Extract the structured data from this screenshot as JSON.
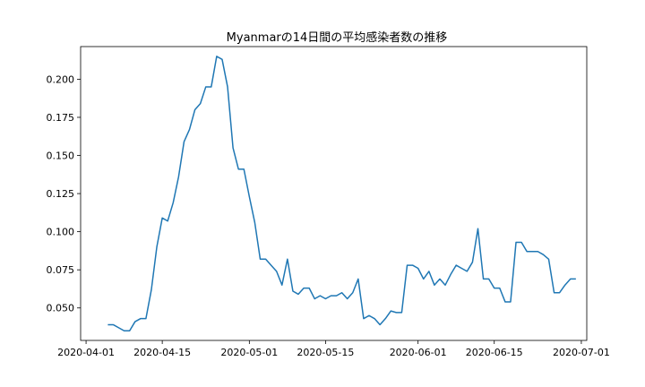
{
  "chart_data": {
    "type": "line",
    "title": "Myanmarの14日間の平均感染者数の推移",
    "xlabel": "",
    "ylabel": "",
    "x_ticks": [
      "2020-04-01",
      "2020-04-15",
      "2020-05-01",
      "2020-05-15",
      "2020-06-01",
      "2020-06-15",
      "2020-07-01"
    ],
    "y_ticks": [
      "0.050",
      "0.075",
      "0.100",
      "0.125",
      "0.150",
      "0.175",
      "0.200"
    ],
    "xlim": [
      "2020-03-31",
      "2020-07-02"
    ],
    "ylim": [
      0.0287,
      0.2214
    ],
    "grid": false,
    "line_color": "#1f77b4",
    "series": [
      {
        "x": [
          "2020-04-05",
          "2020-04-06",
          "2020-04-07",
          "2020-04-08",
          "2020-04-09",
          "2020-04-10",
          "2020-04-11",
          "2020-04-12",
          "2020-04-13",
          "2020-04-14",
          "2020-04-15",
          "2020-04-16",
          "2020-04-17",
          "2020-04-18",
          "2020-04-19",
          "2020-04-20",
          "2020-04-21",
          "2020-04-22",
          "2020-04-23",
          "2020-04-24",
          "2020-04-25",
          "2020-04-26",
          "2020-04-27",
          "2020-04-28",
          "2020-04-29",
          "2020-04-30",
          "2020-05-01",
          "2020-05-02",
          "2020-05-03",
          "2020-05-04",
          "2020-05-05",
          "2020-05-06",
          "2020-05-07",
          "2020-05-08",
          "2020-05-09",
          "2020-05-10",
          "2020-05-11",
          "2020-05-12",
          "2020-05-13",
          "2020-05-14",
          "2020-05-15",
          "2020-05-16",
          "2020-05-17",
          "2020-05-18",
          "2020-05-19",
          "2020-05-20",
          "2020-05-21",
          "2020-05-22",
          "2020-05-23",
          "2020-05-24",
          "2020-05-25",
          "2020-05-26",
          "2020-05-27",
          "2020-05-28",
          "2020-05-29",
          "2020-05-30",
          "2020-05-31",
          "2020-06-01",
          "2020-06-02",
          "2020-06-03",
          "2020-06-04",
          "2020-06-05",
          "2020-06-06",
          "2020-06-07",
          "2020-06-08",
          "2020-06-09",
          "2020-06-10",
          "2020-06-11",
          "2020-06-12",
          "2020-06-13",
          "2020-06-14",
          "2020-06-15",
          "2020-06-16",
          "2020-06-17",
          "2020-06-18",
          "2020-06-19",
          "2020-06-20",
          "2020-06-21",
          "2020-06-22",
          "2020-06-23",
          "2020-06-24",
          "2020-06-25",
          "2020-06-26",
          "2020-06-27",
          "2020-06-28",
          "2020-06-29",
          "2020-06-30"
        ],
        "values": [
          0.039,
          0.039,
          0.037,
          0.035,
          0.035,
          0.041,
          0.043,
          0.043,
          0.062,
          0.09,
          0.109,
          0.107,
          0.119,
          0.136,
          0.159,
          0.167,
          0.18,
          0.184,
          0.195,
          0.195,
          0.215,
          0.213,
          0.195,
          0.155,
          0.141,
          0.141,
          0.123,
          0.106,
          0.082,
          0.082,
          0.078,
          0.074,
          0.065,
          0.082,
          0.061,
          0.059,
          0.063,
          0.063,
          0.056,
          0.058,
          0.056,
          0.058,
          0.058,
          0.06,
          0.056,
          0.06,
          0.069,
          0.043,
          0.045,
          0.043,
          0.039,
          0.043,
          0.048,
          0.047,
          0.047,
          0.078,
          0.078,
          0.076,
          0.069,
          0.074,
          0.065,
          0.069,
          0.065,
          0.072,
          0.078,
          0.076,
          0.074,
          0.08,
          0.102,
          0.069,
          0.069,
          0.063,
          0.063,
          0.054,
          0.054,
          0.093,
          0.093,
          0.087,
          0.087,
          0.087,
          0.085,
          0.082,
          0.06,
          0.06,
          0.065,
          0.069,
          0.069
        ]
      }
    ]
  }
}
